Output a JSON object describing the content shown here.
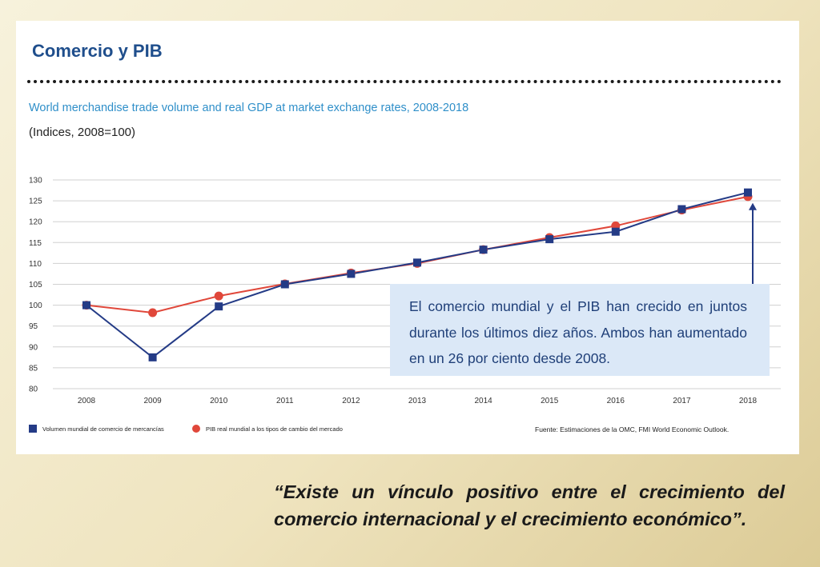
{
  "slide": {
    "title": "Comercio y PIB",
    "quote": "“Existe un vínculo positivo entre el crecimiento del comercio internacional y el crecimiento económico”."
  },
  "chart_data": {
    "type": "line",
    "title": "World merchandise trade volume and real GDP at market exchange rates, 2008-2018",
    "subtitle": "(Indices, 2008=100)",
    "x": [
      "2008",
      "2009",
      "2010",
      "2011",
      "2012",
      "2013",
      "2014",
      "2015",
      "2016",
      "2017",
      "2018"
    ],
    "ylim": [
      80,
      130
    ],
    "yticks": [
      80,
      85,
      90,
      95,
      100,
      105,
      110,
      115,
      120,
      125,
      130
    ],
    "grid": true,
    "legend_position": "bottom-left",
    "series": [
      {
        "name": "Volumen mundial de comercio de mercancías",
        "color": "#243b86",
        "marker": "square",
        "values": [
          100,
          87.5,
          99.7,
          105,
          107.5,
          110.2,
          113.3,
          115.8,
          117.6,
          123,
          127
        ]
      },
      {
        "name": "PIB real mundial a los tipos de cambio del mercado",
        "color": "#e0473a",
        "marker": "circle",
        "values": [
          100,
          98.2,
          102.2,
          105.1,
          107.7,
          110,
          113.3,
          116.2,
          119,
          122.8,
          126
        ]
      }
    ],
    "source": "Fuente: Estimaciones de la OMC, FMI World Economic Outlook.",
    "annotation": {
      "text": "El comercio mundial y el PIB han crecido en juntos durante los últimos diez años. Ambos han aumentado en un 26 por ciento desde 2008.",
      "arrow_to_category": "2018"
    }
  },
  "colors": {
    "title": "#1f4e8c",
    "chart_title": "#2f8fc9",
    "callout_bg": "#dbe8f7",
    "callout_text": "#1f3f78",
    "arrow": "#243b86"
  }
}
